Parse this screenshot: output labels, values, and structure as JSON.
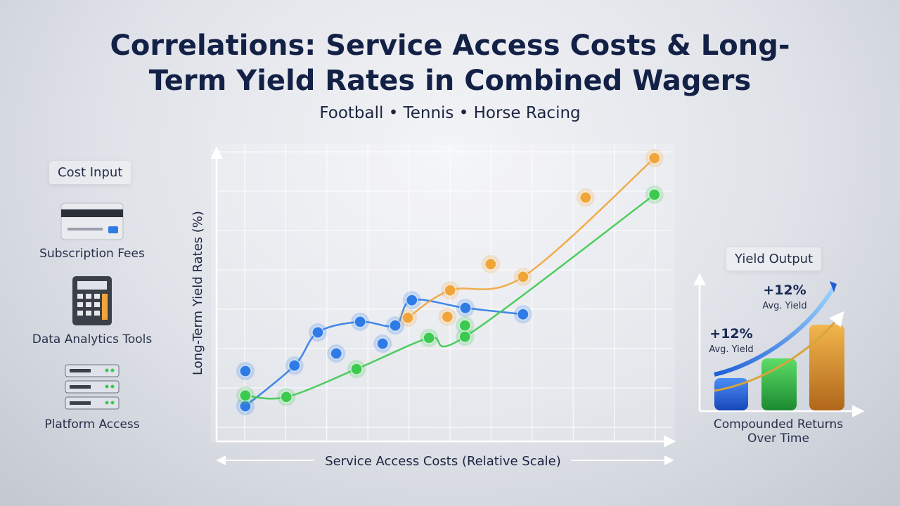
{
  "title": "Correlations: Service Access Costs & Long-Term Yield Rates in Combined Wagers",
  "subtitle": "Football • Tennis • Horse Racing",
  "cost_input": {
    "heading": "Cost Input",
    "items": [
      "Subscription Fees",
      "Data Analytics Tools",
      "Platform Access"
    ]
  },
  "yield_output": {
    "heading": "Yield Output",
    "labels": [
      {
        "value": "+12%",
        "note": "Avg. Yield"
      },
      {
        "value": "+12%",
        "note": "Avg. Yield"
      }
    ],
    "caption": "Compounded Returns Over Time"
  },
  "chart_data": {
    "type": "scatter",
    "x_label": "Service Access Costs (Relative Scale)",
    "y_label": "Long-Term Yield Rates (%)",
    "xlim": [
      0,
      10
    ],
    "ylim": [
      0,
      10
    ],
    "grid": true,
    "series": [
      {
        "color": "#2f7be6",
        "mode": "lines+markers",
        "x": [
          0.64,
          1.73,
          2.25,
          3.19,
          3.97,
          4.34,
          5.53,
          6.81
        ],
        "y": [
          1.22,
          2.63,
          3.78,
          4.15,
          4.02,
          4.9,
          4.63,
          4.41
        ]
      },
      {
        "color": "#2f7be6",
        "mode": "markers",
        "x": [
          0.64,
          2.66,
          3.69
        ],
        "y": [
          2.44,
          3.05,
          3.39
        ]
      },
      {
        "color": "#3cc94f",
        "mode": "lines+markers",
        "x": [
          0.64,
          1.55,
          3.11,
          4.72,
          5.52,
          9.73
        ],
        "y": [
          1.59,
          1.54,
          2.51,
          3.59,
          3.63,
          8.56
        ]
      },
      {
        "color": "#3cc94f",
        "mode": "markers",
        "x": [
          5.52
        ],
        "y": [
          4.02
        ]
      },
      {
        "color": "#f0a53a",
        "mode": "lines+markers",
        "x": [
          4.25,
          5.19,
          6.81,
          9.73
        ],
        "y": [
          4.29,
          5.24,
          5.71,
          9.83
        ]
      },
      {
        "color": "#f0a53a",
        "mode": "markers",
        "x": [
          5.13,
          6.09,
          8.2
        ],
        "y": [
          4.32,
          6.15,
          8.46
        ]
      }
    ]
  }
}
